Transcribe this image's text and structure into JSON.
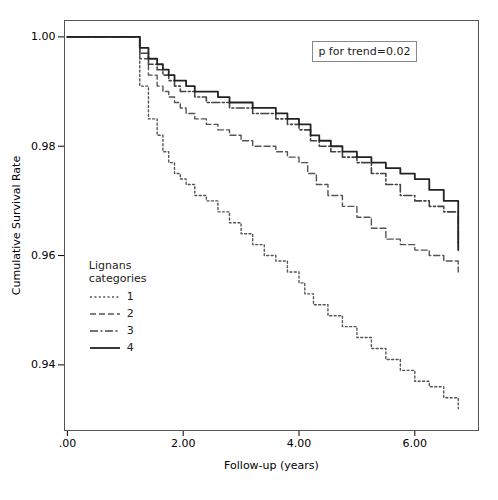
{
  "chart_data": {
    "type": "step",
    "xlabel": "Follow-up (years)",
    "ylabel": "Cumulative Survival Rate",
    "xlim": [
      -0.05,
      7.1
    ],
    "ylim": [
      0.928,
      1.003
    ],
    "xticks": [
      {
        "value": 0.0,
        "label": ".00"
      },
      {
        "value": 2.0,
        "label": "2.00"
      },
      {
        "value": 4.0,
        "label": "4.00"
      },
      {
        "value": 6.0,
        "label": "6.00"
      }
    ],
    "yticks": [
      0.94,
      0.96,
      0.98,
      {
        "value": 1.0,
        "label": "1.00"
      }
    ],
    "grid": false,
    "legend": "lower left",
    "legend_title": "Lignans\ncategories",
    "annotation": "p for trend=0.02",
    "series": [
      {
        "name": "1",
        "color": "#555555",
        "line_style": "dotted",
        "x": [
          0.0,
          1.2,
          1.25,
          1.4,
          1.55,
          1.65,
          1.75,
          1.85,
          1.95,
          2.05,
          2.2,
          2.4,
          2.6,
          2.8,
          3.0,
          3.2,
          3.4,
          3.6,
          3.8,
          4.0,
          4.1,
          4.25,
          4.5,
          4.75,
          5.0,
          5.25,
          5.5,
          5.75,
          6.0,
          6.25,
          6.5,
          6.75
        ],
        "values": [
          1.0,
          1.0,
          0.991,
          0.985,
          0.982,
          0.979,
          0.977,
          0.975,
          0.974,
          0.973,
          0.971,
          0.97,
          0.968,
          0.966,
          0.964,
          0.962,
          0.96,
          0.959,
          0.957,
          0.955,
          0.953,
          0.951,
          0.949,
          0.947,
          0.945,
          0.943,
          0.941,
          0.939,
          0.937,
          0.936,
          0.934,
          0.932
        ]
      },
      {
        "name": "2",
        "color": "#555555",
        "line_style": "dashed",
        "x": [
          0.0,
          1.2,
          1.25,
          1.4,
          1.55,
          1.65,
          1.75,
          1.85,
          1.95,
          2.05,
          2.2,
          2.4,
          2.6,
          2.8,
          3.0,
          3.2,
          3.4,
          3.6,
          3.8,
          4.0,
          4.15,
          4.3,
          4.5,
          4.75,
          5.0,
          5.25,
          5.5,
          5.75,
          6.0,
          6.25,
          6.5,
          6.75
        ],
        "values": [
          1.0,
          1.0,
          0.996,
          0.993,
          0.991,
          0.99,
          0.989,
          0.988,
          0.987,
          0.986,
          0.985,
          0.984,
          0.983,
          0.982,
          0.981,
          0.98,
          0.98,
          0.979,
          0.978,
          0.977,
          0.975,
          0.973,
          0.971,
          0.969,
          0.967,
          0.965,
          0.963,
          0.962,
          0.961,
          0.96,
          0.959,
          0.957
        ]
      },
      {
        "name": "3",
        "color": "#444444",
        "line_style": "dashdot",
        "x": [
          0.0,
          1.2,
          1.25,
          1.4,
          1.55,
          1.65,
          1.75,
          1.85,
          1.95,
          2.05,
          2.2,
          2.4,
          2.6,
          2.8,
          3.0,
          3.2,
          3.4,
          3.6,
          3.8,
          4.0,
          4.2,
          4.35,
          4.55,
          4.75,
          5.0,
          5.25,
          5.5,
          5.75,
          6.0,
          6.25,
          6.5,
          6.75
        ],
        "values": [
          1.0,
          1.0,
          0.997,
          0.995,
          0.994,
          0.993,
          0.992,
          0.991,
          0.99,
          0.99,
          0.989,
          0.988,
          0.988,
          0.987,
          0.987,
          0.986,
          0.986,
          0.985,
          0.984,
          0.983,
          0.981,
          0.98,
          0.979,
          0.978,
          0.977,
          0.975,
          0.973,
          0.971,
          0.97,
          0.969,
          0.968,
          0.962
        ]
      },
      {
        "name": "4",
        "color": "#222222",
        "line_style": "solid",
        "x": [
          0.0,
          1.2,
          1.25,
          1.4,
          1.55,
          1.65,
          1.75,
          1.85,
          1.95,
          2.05,
          2.2,
          2.4,
          2.6,
          2.8,
          3.0,
          3.2,
          3.4,
          3.6,
          3.8,
          4.0,
          4.2,
          4.35,
          4.55,
          4.75,
          5.0,
          5.25,
          5.5,
          5.75,
          6.0,
          6.25,
          6.5,
          6.75
        ],
        "values": [
          1.0,
          1.0,
          0.998,
          0.996,
          0.995,
          0.994,
          0.993,
          0.992,
          0.992,
          0.991,
          0.99,
          0.99,
          0.989,
          0.988,
          0.988,
          0.987,
          0.987,
          0.986,
          0.985,
          0.984,
          0.982,
          0.981,
          0.98,
          0.979,
          0.978,
          0.977,
          0.976,
          0.975,
          0.974,
          0.972,
          0.97,
          0.961
        ]
      }
    ]
  }
}
